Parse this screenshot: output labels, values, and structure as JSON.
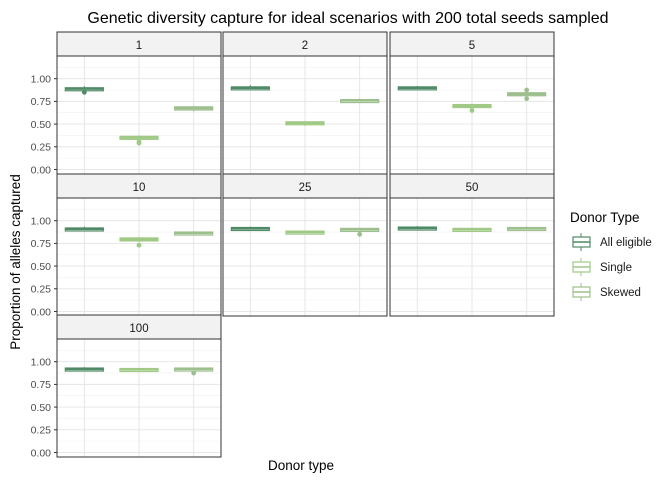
{
  "chart_data": {
    "type": "boxplot",
    "title": "Genetic diversity capture for ideal scenarios with 200 total seeds sampled",
    "xlabel": "Donor type",
    "ylabel": "Proportion of alleles captured",
    "ylim": [
      -0.05,
      1.25
    ],
    "yticks": [
      0.0,
      0.25,
      0.5,
      0.75,
      1.0
    ],
    "ytick_labels": [
      "0.00",
      "0.25",
      "0.50",
      "0.75",
      "1.00"
    ],
    "grid": true,
    "facet_layout": "3 columns, 3 rows",
    "categories": [
      "All eligible",
      "Single",
      "Skewed"
    ],
    "legend": {
      "title": "Donor Type",
      "position": "right",
      "entries": [
        {
          "name": "All eligible",
          "color": "#4f8a66"
        },
        {
          "name": "Single",
          "color": "#c9e8a8"
        },
        {
          "name": "Skewed",
          "color": "#9dbf8d"
        }
      ]
    },
    "colors": {
      "All eligible": "#4f8a66",
      "Single": "#c9e8a8",
      "Skewed": "#9dbf8d"
    },
    "panels": [
      {
        "label": "1",
        "boxes": [
          {
            "category": "All eligible",
            "q1": 0.875,
            "median": 0.89,
            "q3": 0.9,
            "whisker_low": 0.86,
            "whisker_high": 0.92,
            "outliers": [
              0.85
            ]
          },
          {
            "category": "Single",
            "q1": 0.335,
            "median": 0.35,
            "q3": 0.365,
            "whisker_low": 0.32,
            "whisker_high": 0.375,
            "outliers": [
              0.29,
              0.305
            ]
          },
          {
            "category": "Skewed",
            "q1": 0.655,
            "median": 0.675,
            "q3": 0.69,
            "whisker_low": 0.64,
            "whisker_high": 0.7,
            "outliers": []
          }
        ]
      },
      {
        "label": "2",
        "boxes": [
          {
            "category": "All eligible",
            "q1": 0.885,
            "median": 0.9,
            "q3": 0.91,
            "whisker_low": 0.87,
            "whisker_high": 0.93,
            "outliers": []
          },
          {
            "category": "Single",
            "q1": 0.495,
            "median": 0.51,
            "q3": 0.525,
            "whisker_low": 0.48,
            "whisker_high": 0.535,
            "outliers": []
          },
          {
            "category": "Skewed",
            "q1": 0.745,
            "median": 0.76,
            "q3": 0.77,
            "whisker_low": 0.735,
            "whisker_high": 0.78,
            "outliers": []
          }
        ]
      },
      {
        "label": "5",
        "boxes": [
          {
            "category": "All eligible",
            "q1": 0.885,
            "median": 0.9,
            "q3": 0.91,
            "whisker_low": 0.87,
            "whisker_high": 0.92,
            "outliers": []
          },
          {
            "category": "Single",
            "q1": 0.685,
            "median": 0.7,
            "q3": 0.715,
            "whisker_low": 0.67,
            "whisker_high": 0.725,
            "outliers": [
              0.65
            ]
          },
          {
            "category": "Skewed",
            "q1": 0.815,
            "median": 0.83,
            "q3": 0.845,
            "whisker_low": 0.8,
            "whisker_high": 0.86,
            "outliers": [
              0.78,
              0.875
            ]
          }
        ]
      },
      {
        "label": "10",
        "boxes": [
          {
            "category": "All eligible",
            "q1": 0.895,
            "median": 0.91,
            "q3": 0.92,
            "whisker_low": 0.88,
            "whisker_high": 0.935,
            "outliers": []
          },
          {
            "category": "Single",
            "q1": 0.78,
            "median": 0.795,
            "q3": 0.81,
            "whisker_low": 0.765,
            "whisker_high": 0.82,
            "outliers": [
              0.73
            ]
          },
          {
            "category": "Skewed",
            "q1": 0.85,
            "median": 0.865,
            "q3": 0.875,
            "whisker_low": 0.84,
            "whisker_high": 0.885,
            "outliers": []
          }
        ]
      },
      {
        "label": "25",
        "boxes": [
          {
            "category": "All eligible",
            "q1": 0.905,
            "median": 0.915,
            "q3": 0.925,
            "whisker_low": 0.895,
            "whisker_high": 0.935,
            "outliers": []
          },
          {
            "category": "Single",
            "q1": 0.865,
            "median": 0.875,
            "q3": 0.885,
            "whisker_low": 0.855,
            "whisker_high": 0.89,
            "outliers": []
          },
          {
            "category": "Skewed",
            "q1": 0.895,
            "median": 0.905,
            "q3": 0.915,
            "whisker_low": 0.885,
            "whisker_high": 0.925,
            "outliers": [
              0.85
            ]
          }
        ]
      },
      {
        "label": "50",
        "boxes": [
          {
            "category": "All eligible",
            "q1": 0.91,
            "median": 0.92,
            "q3": 0.93,
            "whisker_low": 0.9,
            "whisker_high": 0.94,
            "outliers": []
          },
          {
            "category": "Single",
            "q1": 0.895,
            "median": 0.905,
            "q3": 0.915,
            "whisker_low": 0.885,
            "whisker_high": 0.92,
            "outliers": []
          },
          {
            "category": "Skewed",
            "q1": 0.905,
            "median": 0.915,
            "q3": 0.925,
            "whisker_low": 0.895,
            "whisker_high": 0.935,
            "outliers": []
          }
        ]
      },
      {
        "label": "100",
        "boxes": [
          {
            "category": "All eligible",
            "q1": 0.91,
            "median": 0.92,
            "q3": 0.93,
            "whisker_low": 0.9,
            "whisker_high": 0.94,
            "outliers": []
          },
          {
            "category": "Single",
            "q1": 0.905,
            "median": 0.915,
            "q3": 0.925,
            "whisker_low": 0.895,
            "whisker_high": 0.93,
            "outliers": []
          },
          {
            "category": "Skewed",
            "q1": 0.91,
            "median": 0.92,
            "q3": 0.93,
            "whisker_low": 0.9,
            "whisker_high": 0.935,
            "outliers": [
              0.875
            ]
          }
        ]
      }
    ]
  }
}
